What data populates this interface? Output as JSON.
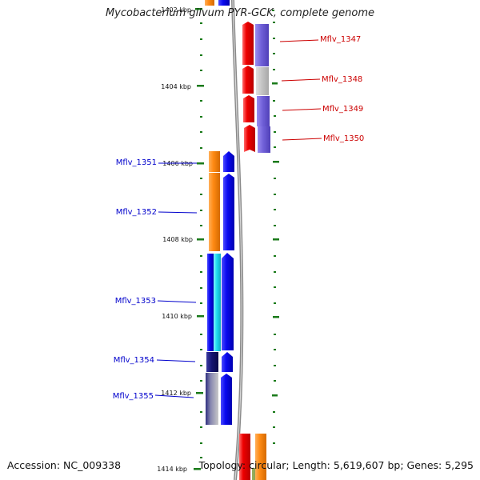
{
  "title": "Mycobacterium gilvum PYR-GCK, complete genome",
  "footer": {
    "accession": "Accession: NC_009338",
    "summary": "Topology: circular; Length: 5,619,607 bp; Genes: 5,295"
  },
  "ticks": [
    "1402 kbp",
    "1404 kbp",
    "1406 kbp",
    "1408 kbp",
    "1410 kbp",
    "1412 kbp",
    "1414 kbp"
  ],
  "genes_right": [
    "Mflv_1347",
    "Mflv_1348",
    "Mflv_1349",
    "Mflv_1350"
  ],
  "genes_left": [
    "Mflv_1351",
    "Mflv_1352",
    "Mflv_1353",
    "Mflv_1354",
    "Mflv_1355"
  ],
  "colors": {
    "backbone": "#999999",
    "tick": "#1a7a1a",
    "forward_label": "#cc0000",
    "reverse_label": "#0000cc",
    "red_gene": "#ee1111",
    "blue_gene": "#1111ee",
    "orange_gene": "#ff8c1a",
    "purple_gene": "#7a6ad8",
    "cyan_gene": "#22ddee",
    "navy_gene": "#141470",
    "grey_gene": "#c0c0c0"
  }
}
